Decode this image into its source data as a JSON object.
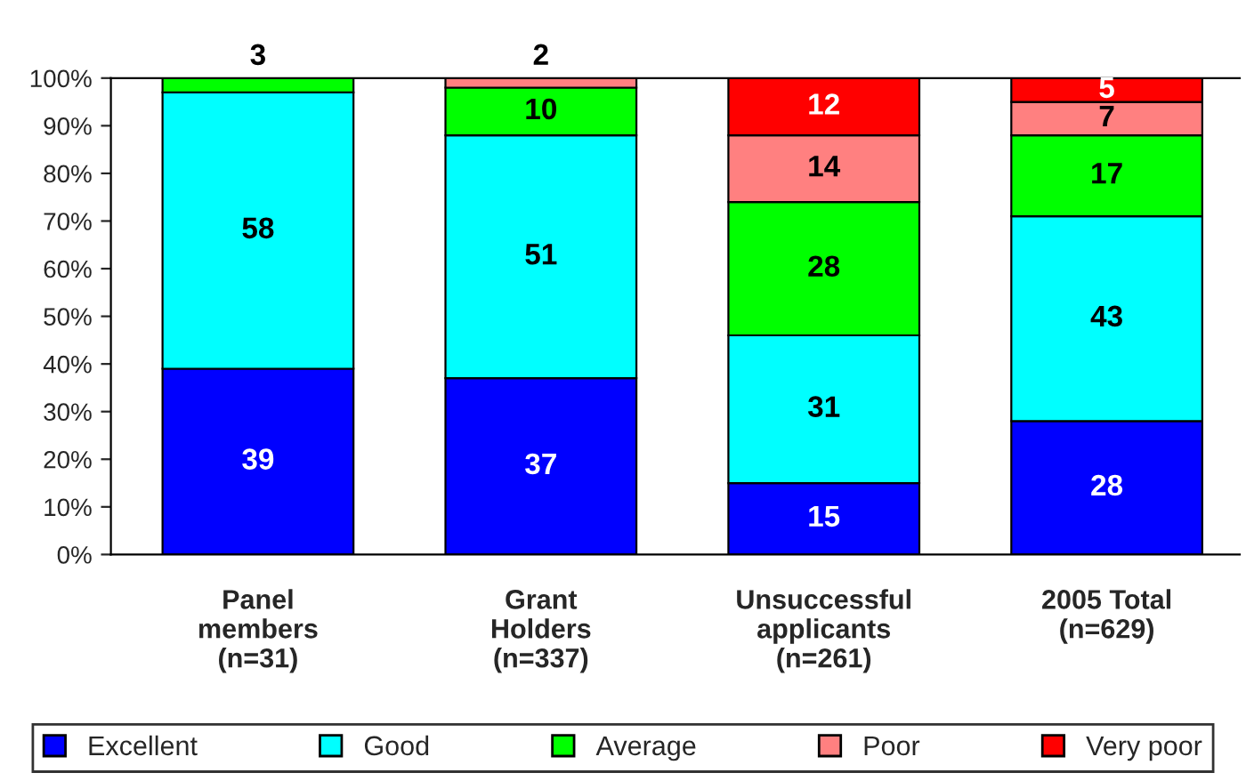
{
  "chart_data": {
    "type": "bar",
    "stacked": true,
    "categories": [
      "Panel\nmembers\n(n=31)",
      "Grant\nHolders\n(n=337)",
      "Unsuccessful\napplicants\n(n=261)",
      "2005 Total\n(n=629)"
    ],
    "series": [
      {
        "name": "Excellent",
        "color": "#0000ff",
        "values": [
          39,
          37,
          15,
          28
        ],
        "value_labels": [
          "39",
          "37",
          "15",
          "28"
        ]
      },
      {
        "name": "Good",
        "color": "#00ffff",
        "values": [
          58,
          51,
          31,
          43
        ],
        "value_labels": [
          "58",
          "51",
          "31",
          "43"
        ]
      },
      {
        "name": "Average",
        "color": "#00ff00",
        "values": [
          3,
          10,
          28,
          17
        ],
        "value_labels": [
          "3",
          "10",
          "28",
          "17"
        ]
      },
      {
        "name": "Poor",
        "color": "#ff8080",
        "values": [
          0,
          2,
          14,
          7
        ],
        "value_labels": [
          null,
          "2",
          "14",
          "7"
        ]
      },
      {
        "name": "Very poor",
        "color": "#ff0000",
        "values": [
          0,
          0,
          12,
          5
        ],
        "value_labels": [
          null,
          null,
          "12",
          "5"
        ]
      }
    ],
    "ylim": [
      0,
      100
    ],
    "yticks": [
      {
        "value": 0,
        "label": "0%"
      },
      {
        "value": 10,
        "label": "10%"
      },
      {
        "value": 20,
        "label": "20%"
      },
      {
        "value": 30,
        "label": "30%"
      },
      {
        "value": 40,
        "label": "40%"
      },
      {
        "value": 50,
        "label": "50%"
      },
      {
        "value": 60,
        "label": "60%"
      },
      {
        "value": 70,
        "label": "70%"
      },
      {
        "value": 80,
        "label": "80%"
      },
      {
        "value": 90,
        "label": "90%"
      },
      {
        "value": 100,
        "label": "100%"
      }
    ],
    "grid": false,
    "legend": "bottom"
  }
}
